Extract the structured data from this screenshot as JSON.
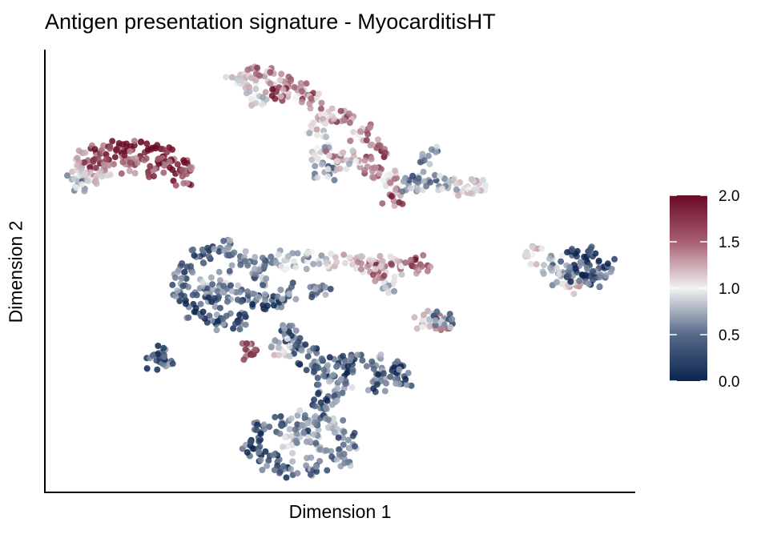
{
  "chart_data": {
    "type": "scatter",
    "title": "Antigen presentation signature - MyocarditisHT",
    "xlabel": "Dimension 1",
    "ylabel": "Dimension 2",
    "xlim": [
      0,
      100
    ],
    "ylim": [
      0,
      100
    ],
    "grid": false,
    "axis_ticks": false,
    "legend": {
      "placement": "right",
      "type": "colorbar",
      "ticks": [
        "0.0",
        "0.5",
        "1.0",
        "1.5",
        "2.0"
      ],
      "range": [
        0,
        2
      ],
      "colors": {
        "low": "#0b2550",
        "mid": "#f2f2f2",
        "high": "#6b0a24"
      }
    },
    "points": [
      [
        5.6,
        69.7,
        0.6
      ],
      [
        6.2,
        73.4,
        1.2
      ],
      [
        7.3,
        75,
        1.6
      ],
      [
        9.4,
        76.5,
        1.8
      ],
      [
        12.1,
        77.2,
        1.9
      ],
      [
        14.8,
        77.4,
        1.8
      ],
      [
        17.5,
        77.2,
        1.9
      ],
      [
        20.2,
        75.9,
        1.8
      ],
      [
        22.5,
        74.1,
        1.9
      ],
      [
        23.3,
        71.4,
        1.7
      ],
      [
        10,
        73.2,
        1.5
      ],
      [
        8,
        70.5,
        1.0
      ],
      [
        14.1,
        74.1,
        1.6
      ],
      [
        18.9,
        73.2,
        1.8
      ],
      [
        32.4,
        92.2,
        1.0
      ],
      [
        34.5,
        94,
        1.2
      ],
      [
        37.2,
        94,
        1.4
      ],
      [
        39.9,
        93.1,
        1.5
      ],
      [
        42.6,
        91.3,
        1.3
      ],
      [
        45.3,
        88.6,
        1.5
      ],
      [
        48,
        85.9,
        1.2
      ],
      [
        50.7,
        84.1,
        1.6
      ],
      [
        53.5,
        81.4,
        1.4
      ],
      [
        56.2,
        77.8,
        1.7
      ],
      [
        46,
        82.3,
        1.0
      ],
      [
        46.7,
        76.9,
        0.8
      ],
      [
        47.4,
        72.3,
        0.6
      ],
      [
        49.4,
        75,
        1.3
      ],
      [
        52.1,
        75,
        1.0
      ],
      [
        55.5,
        73.2,
        1.5
      ],
      [
        58.2,
        70.5,
        1.2
      ],
      [
        58.9,
        66.9,
        1.6
      ],
      [
        61.6,
        69.6,
        0.5
      ],
      [
        65,
        70.5,
        0.5
      ],
      [
        68.4,
        69.6,
        0.7
      ],
      [
        71.1,
        68.7,
        0.9
      ],
      [
        73.5,
        69.6,
        1.2
      ],
      [
        65,
        76,
        0.5
      ],
      [
        35.8,
        89.5,
        1.0
      ],
      [
        39.2,
        90.4,
        1.6
      ],
      [
        23.6,
        49.7,
        0.3
      ],
      [
        26.3,
        53.3,
        0.2
      ],
      [
        29.7,
        55.2,
        0.4
      ],
      [
        33.1,
        53.3,
        0.3
      ],
      [
        35.8,
        48.8,
        0.5
      ],
      [
        35.8,
        43.4,
        0.3
      ],
      [
        33.1,
        38.9,
        0.2
      ],
      [
        29,
        38,
        0.3
      ],
      [
        25.6,
        40.7,
        0.2
      ],
      [
        22.9,
        45.2,
        0.3
      ],
      [
        26.3,
        46.1,
        0.5
      ],
      [
        29.7,
        47.9,
        0.6
      ],
      [
        32.4,
        45.2,
        0.4
      ],
      [
        29,
        43.4,
        0.3
      ],
      [
        38.5,
        43.4,
        0.3
      ],
      [
        41.2,
        45.2,
        0.4
      ],
      [
        46.7,
        46.1,
        0.3
      ],
      [
        37.2,
        51.5,
        0.5
      ],
      [
        40.6,
        52.4,
        0.8
      ],
      [
        43.9,
        52.4,
        0.6
      ],
      [
        48,
        51.9,
        0.9
      ],
      [
        52.1,
        51.5,
        1.2
      ],
      [
        56.2,
        51.9,
        1.5
      ],
      [
        60.2,
        51.5,
        1.4
      ],
      [
        63.6,
        51.5,
        1.7
      ],
      [
        58.9,
        47,
        0.9
      ],
      [
        56.2,
        49.7,
        1.4
      ],
      [
        82.6,
        53.7,
        1.0
      ],
      [
        86,
        51.5,
        0.6
      ],
      [
        87.4,
        48.8,
        0.7
      ],
      [
        89.4,
        47,
        1.2
      ],
      [
        90.1,
        53.3,
        0.1
      ],
      [
        92.8,
        53.3,
        0.1
      ],
      [
        94.8,
        50.6,
        0.2
      ],
      [
        92.8,
        47.9,
        0.2
      ],
      [
        90.1,
        49.7,
        0.3
      ],
      [
        64.3,
        39.2,
        1.0
      ],
      [
        66.8,
        38,
        1.4
      ],
      [
        67.7,
        39.2,
        0.5
      ],
      [
        18.9,
        29.8,
        0.2
      ],
      [
        20,
        31.1,
        0.3
      ],
      [
        41.2,
        36.2,
        0.3
      ],
      [
        43.3,
        33.5,
        0.4
      ],
      [
        44.6,
        30.7,
        0.2
      ],
      [
        46,
        28,
        0.3
      ],
      [
        47.4,
        26.2,
        0.4
      ],
      [
        49.4,
        28.4,
        0.3
      ],
      [
        52.1,
        28.9,
        0.2
      ],
      [
        55.5,
        28.9,
        0.4
      ],
      [
        58.9,
        28,
        0.3
      ],
      [
        60.9,
        26.2,
        0.2
      ],
      [
        56.2,
        24.8,
        0.3
      ],
      [
        50.7,
        23.5,
        0.6
      ],
      [
        48,
        21.7,
        0.3
      ],
      [
        46.7,
        19,
        0.4
      ],
      [
        35.2,
        31.6,
        1.7
      ],
      [
        39.9,
        32.5,
        0.9
      ],
      [
        35.2,
        9.9,
        0.2
      ],
      [
        36.6,
        13.6,
        0.3
      ],
      [
        40.6,
        15.4,
        0.4
      ],
      [
        44.6,
        16.3,
        0.5
      ],
      [
        48.7,
        14.5,
        0.6
      ],
      [
        51.4,
        11.8,
        0.5
      ],
      [
        50.1,
        8.1,
        0.4
      ],
      [
        46,
        5.9,
        0.5
      ],
      [
        41.2,
        5.4,
        0.3
      ],
      [
        37.9,
        7.2,
        0.2
      ],
      [
        41.9,
        10.8,
        0.7
      ],
      [
        46,
        10.8,
        0.6
      ],
      [
        43.9,
        13.6,
        0.4
      ]
    ]
  }
}
